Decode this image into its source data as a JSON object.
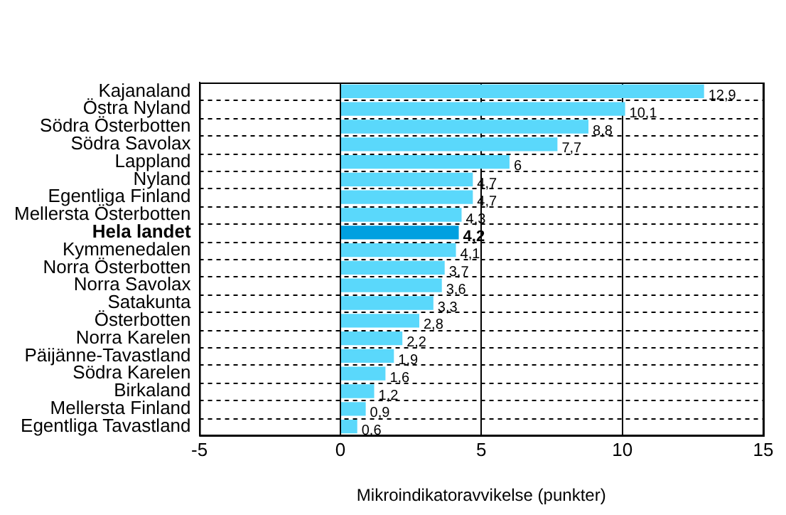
{
  "chart_data": {
    "type": "bar",
    "orientation": "horizontal",
    "xlabel": "Mikroindikatoravvikelse (punkter)",
    "categories": [
      "Kajanaland",
      "Östra Nyland",
      "Södra Österbotten",
      "Södra Savolax",
      "Lappland",
      "Nyland",
      "Egentliga Finland",
      "Mellersta Österbotten",
      "Hela landet",
      "Kymmenedalen",
      "Norra Österbotten",
      "Norra Savolax",
      "Satakunta",
      "Österbotten",
      "Norra Karelen",
      "Päijänne-Tavastland",
      "Södra Karelen",
      "Birkaland",
      "Mellersta Finland",
      "Egentliga Tavastland"
    ],
    "values": [
      12.9,
      10.1,
      8.8,
      7.7,
      6,
      4.7,
      4.7,
      4.3,
      4.2,
      4.1,
      3.7,
      3.6,
      3.3,
      2.8,
      2.2,
      1.9,
      1.6,
      1.2,
      0.9,
      0.6
    ],
    "value_labels": [
      "12,9",
      "10,1",
      "8,8",
      "7,7",
      "6",
      "4,7",
      "4,7",
      "4,3",
      "4,2",
      "4,1",
      "3,7",
      "3,6",
      "3,3",
      "2,8",
      "2,2",
      "1,9",
      "1,6",
      "1,2",
      "0,9",
      "0,6"
    ],
    "colors": [
      "#5ad8fb",
      "#5ad8fb",
      "#5ad8fb",
      "#5ad8fb",
      "#5ad8fb",
      "#5ad8fb",
      "#5ad8fb",
      "#5ad8fb",
      "#00a0e0",
      "#5ad8fb",
      "#5ad8fb",
      "#5ad8fb",
      "#5ad8fb",
      "#5ad8fb",
      "#5ad8fb",
      "#5ad8fb",
      "#5ad8fb",
      "#5ad8fb",
      "#5ad8fb",
      "#5ad8fb"
    ],
    "xlim": [
      -5,
      15
    ],
    "xticks": [
      -5,
      0,
      5,
      10,
      15
    ],
    "grid": true,
    "legend": false
  }
}
